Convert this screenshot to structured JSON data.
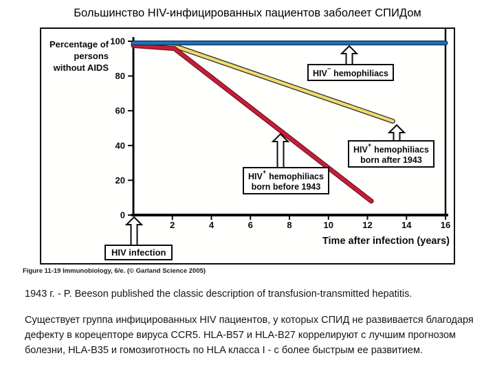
{
  "slide": {
    "title": "Большинство HIV-инфицированных пациентов заболеет СПИДом",
    "caption": "Figure 11-19 Immunobiology, 6/e. (© Garland Science 2005)",
    "paragraph1": "1943 г. - P. Beeson published the classic description of transfusion-transmitted hepatitis.",
    "paragraph2": "Существует группа инфицированных HIV пациентов, у которых СПИД не развивается благодаря дефекту в корецепторе вируса CCR5. HLA-B57 и HLA-B27 коррелируют с лучшим прогнозом болезни, HLA-B35 и гомозиготность по HLA класса I - с более быстрым ее развитием."
  },
  "chart_data": {
    "type": "line",
    "title": "",
    "xlabel": "Time after infection (years)",
    "ylabel": "Percentage of persons without AIDS",
    "ylabel_lines": [
      "Percentage of",
      "persons",
      "without AIDS"
    ],
    "xlim": [
      0,
      16
    ],
    "ylim": [
      0,
      100
    ],
    "xticks": [
      2,
      4,
      6,
      8,
      10,
      12,
      14,
      16
    ],
    "yticks": [
      0,
      20,
      40,
      60,
      80,
      100
    ],
    "grid": false,
    "legend_position": "inline-annotations",
    "series": [
      {
        "name": "HIV− hemophiliacs",
        "color": "#2273b4",
        "outline_color": "#0e3056",
        "points": [
          [
            0,
            99
          ],
          [
            16,
            99
          ]
        ]
      },
      {
        "name": "HIV+ hemophiliacs born after 1943",
        "color": "#f3d96b",
        "outline_color": "#272727",
        "points": [
          [
            0,
            98
          ],
          [
            2.3,
            96.5
          ],
          [
            13.3,
            54
          ]
        ]
      },
      {
        "name": "HIV+ hemophiliacs born before 1943",
        "color": "#c51f3a",
        "outline_color": "#77101f",
        "points": [
          [
            0,
            97.5
          ],
          [
            2.1,
            95.8
          ],
          [
            12.2,
            8
          ]
        ]
      }
    ],
    "annotations": {
      "hiv_negative": {
        "base": "HIV",
        "sup": "−",
        "rest": "hemophiliacs"
      },
      "hiv_positive_after": {
        "base": "HIV",
        "sup": "+",
        "rest": "hemophiliacs",
        "line2": "born after 1943"
      },
      "hiv_positive_before": {
        "base": "HIV",
        "sup": "+",
        "rest": "hemophiliacs",
        "line2": "born before 1943"
      },
      "hiv_infection": "HIV infection"
    }
  }
}
